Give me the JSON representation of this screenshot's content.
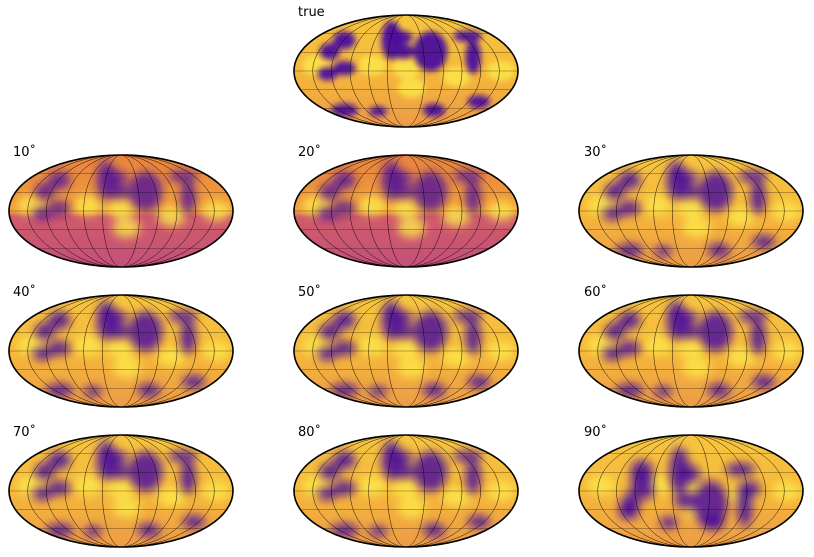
{
  "figure": {
    "panels": [
      {
        "label": "true"
      },
      {
        "label": "10$^\\circ$"
      },
      {
        "label": "20$^\\circ$"
      },
      {
        "label": "30$^\\circ$"
      },
      {
        "label": "40$^\\circ$"
      },
      {
        "label": "50$^\\circ$"
      },
      {
        "label": "60$^\\circ$"
      },
      {
        "label": "70$^\\circ$"
      },
      {
        "label": "80$^\\circ$"
      },
      {
        "label": "90$^\\circ$"
      }
    ],
    "display_labels": [
      "true",
      "10˚",
      "20˚",
      "30˚",
      "40˚",
      "50˚",
      "60˚",
      "70˚",
      "80˚",
      "90˚"
    ],
    "colormap": "plasma",
    "colors": {
      "high": "#f9d838",
      "mid": "#e87a4a",
      "low": "#4a0a9c"
    }
  }
}
